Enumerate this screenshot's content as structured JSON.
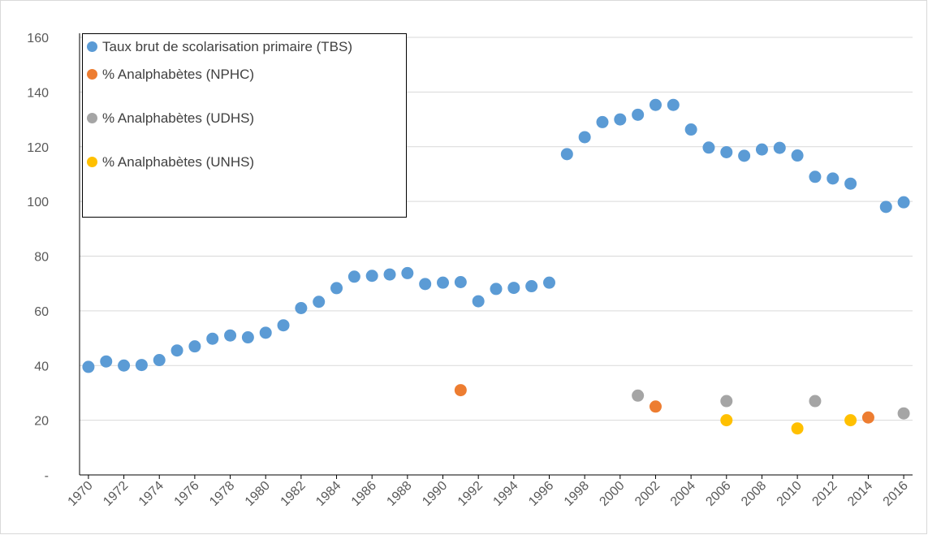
{
  "chart_data": {
    "type": "scatter",
    "xlim": [
      1969.5,
      2016.5
    ],
    "xticks": [
      1970,
      1972,
      1974,
      1976,
      1978,
      1980,
      1982,
      1984,
      1986,
      1988,
      1990,
      1992,
      1994,
      1996,
      1998,
      2000,
      2002,
      2004,
      2006,
      2008,
      2010,
      2012,
      2014,
      2016
    ],
    "ylim": [
      0,
      160
    ],
    "yticks": [
      {
        "value": 0,
        "label": "-"
      },
      20,
      40,
      60,
      80,
      100,
      120,
      140,
      160
    ],
    "grid": true,
    "legend": "top-left",
    "series": [
      {
        "name": "Taux brut de scolarisation primaire (TBS)",
        "color": "#5b9bd5",
        "x": [
          1970,
          1971,
          1972,
          1973,
          1974,
          1975,
          1976,
          1977,
          1978,
          1979,
          1980,
          1981,
          1982,
          1983,
          1984,
          1985,
          1986,
          1987,
          1988,
          1989,
          1990,
          1991,
          1992,
          1993,
          1994,
          1995,
          1996,
          1997,
          1998,
          1999,
          2000,
          2001,
          2002,
          2003,
          2004,
          2005,
          2006,
          2007,
          2008,
          2009,
          2010,
          2011,
          2012,
          2013,
          2015,
          2016
        ],
        "values": [
          39.5,
          41.5,
          40,
          40.2,
          42,
          45.5,
          47,
          49.8,
          51,
          50.3,
          52,
          54.7,
          61,
          63.3,
          68.3,
          72.5,
          72.8,
          73.3,
          73.8,
          69.8,
          70.3,
          70.5,
          63.5,
          68,
          68.4,
          69,
          70.3,
          117.3,
          123.5,
          129,
          130,
          131.7,
          135.3,
          135.3,
          126.3,
          119.7,
          118,
          116.7,
          119,
          119.6,
          116.8,
          109,
          108.4,
          106.5,
          98,
          99.7
        ]
      },
      {
        "name": "% Analphabètes (NPHC)",
        "color": "#ed7d31",
        "x": [
          1991,
          2002,
          2014
        ],
        "values": [
          31,
          25,
          21
        ]
      },
      {
        "name": "% Analphabètes (UDHS)",
        "color": "#a5a5a5",
        "x": [
          2001,
          2006,
          2011,
          2016
        ],
        "values": [
          29,
          27,
          27,
          22.5
        ]
      },
      {
        "name": "% Analphabètes (UNHS)",
        "color": "#ffc000",
        "x": [
          2006,
          2010,
          2013
        ],
        "values": [
          20,
          17,
          20
        ]
      }
    ]
  }
}
